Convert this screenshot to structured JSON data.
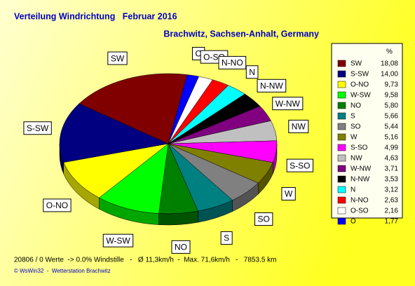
{
  "chart_data": {
    "type": "pie",
    "title": "Verteilung Windrichtung   Februar 2016",
    "subtitle": "Brachwitz, Sachsen-Anhalt, Germany",
    "legend_unit": "%",
    "categories": [
      "SW",
      "S-SW",
      "O-NO",
      "W-SW",
      "NO",
      "S",
      "SO",
      "W",
      "S-SO",
      "NW",
      "W-NW",
      "N-NW",
      "N",
      "N-NO",
      "O-SO",
      "O"
    ],
    "values": [
      18.08,
      14.0,
      9.73,
      9.58,
      5.8,
      5.66,
      5.44,
      5.16,
      4.99,
      4.63,
      3.71,
      3.53,
      3.12,
      2.63,
      2.16,
      1.77
    ],
    "value_labels": [
      "18,08",
      "14,00",
      "9,73",
      "9,58",
      "5,80",
      "5,66",
      "5,44",
      "5,16",
      "4,99",
      "4,63",
      "3,71",
      "3,53",
      "3,12",
      "2,63",
      "2,16",
      "1,77"
    ],
    "colors": [
      "#800000",
      "#000080",
      "#ffff00",
      "#00ff00",
      "#008000",
      "#008080",
      "#808080",
      "#808000",
      "#ff00ff",
      "#c0c0c0",
      "#800080",
      "#000000",
      "#00ffff",
      "#ff0000",
      "#ffffff",
      "#0000ff"
    ],
    "footer": "20806 / 0 Werte  -> 0.0% Windstille   -   Ø 11,3km/h  -  Max. 71,6km/h   -   7853.5 km",
    "credit": "© WsWin32  -  Wetterstation Brachwitz"
  }
}
